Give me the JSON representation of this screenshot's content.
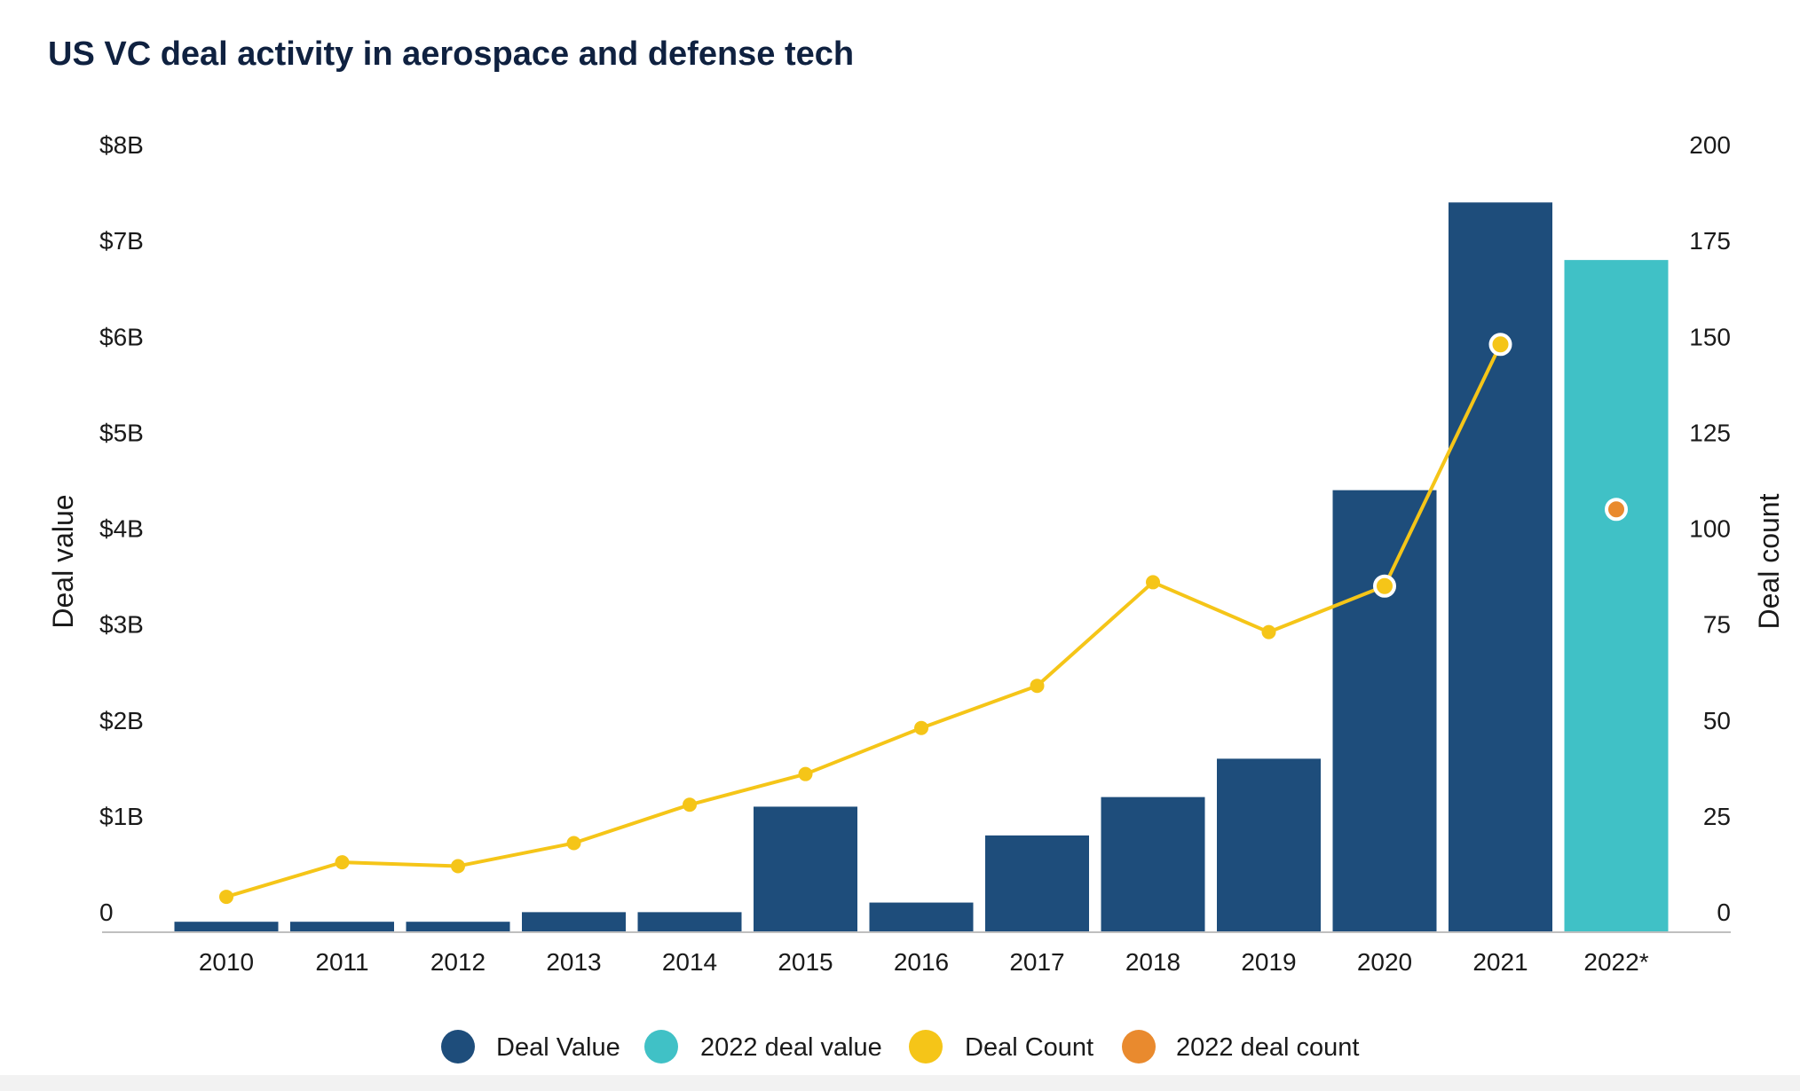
{
  "chart_data": {
    "type": "bar",
    "title": "US VC deal activity in aerospace and defense  tech",
    "ylabel": "Deal value",
    "y2label": "Deal count",
    "categories": [
      "2010",
      "2011",
      "2012",
      "2013",
      "2014",
      "2015",
      "2016",
      "2017",
      "2018",
      "2019",
      "2020",
      "2021",
      "2022*"
    ],
    "ylim": [
      0,
      8
    ],
    "y2lim": [
      0,
      200
    ],
    "yticks": [
      "0",
      "$1B",
      "$2B",
      "$3B",
      "$4B",
      "$5B",
      "$6B",
      "$7B",
      "$8B"
    ],
    "y2ticks": [
      "0",
      "25",
      "50",
      "75",
      "100",
      "125",
      "150",
      "175",
      "200"
    ],
    "series": [
      {
        "name": "Deal Value",
        "kind": "bar",
        "axis": "left",
        "color": "#1e4d7b",
        "values": [
          0.1,
          0.1,
          0.1,
          0.2,
          0.2,
          1.3,
          0.3,
          1.0,
          1.4,
          1.8,
          4.6,
          7.6,
          null
        ]
      },
      {
        "name": "2022 deal value",
        "kind": "bar",
        "axis": "left",
        "color": "#40c1c6",
        "values": [
          null,
          null,
          null,
          null,
          null,
          null,
          null,
          null,
          null,
          null,
          null,
          null,
          7.0
        ]
      },
      {
        "name": "Deal Count",
        "kind": "line",
        "axis": "right",
        "color": "#f5c518",
        "values": [
          9,
          18,
          17,
          23,
          33,
          41,
          53,
          64,
          91,
          78,
          90,
          153,
          null
        ]
      },
      {
        "name": "2022 deal count",
        "kind": "point",
        "axis": "right",
        "color": "#e98a2e",
        "values": [
          null,
          null,
          null,
          null,
          null,
          null,
          null,
          null,
          null,
          null,
          null,
          null,
          110
        ]
      }
    ],
    "legend_position": "bottom-center",
    "grid": false
  }
}
